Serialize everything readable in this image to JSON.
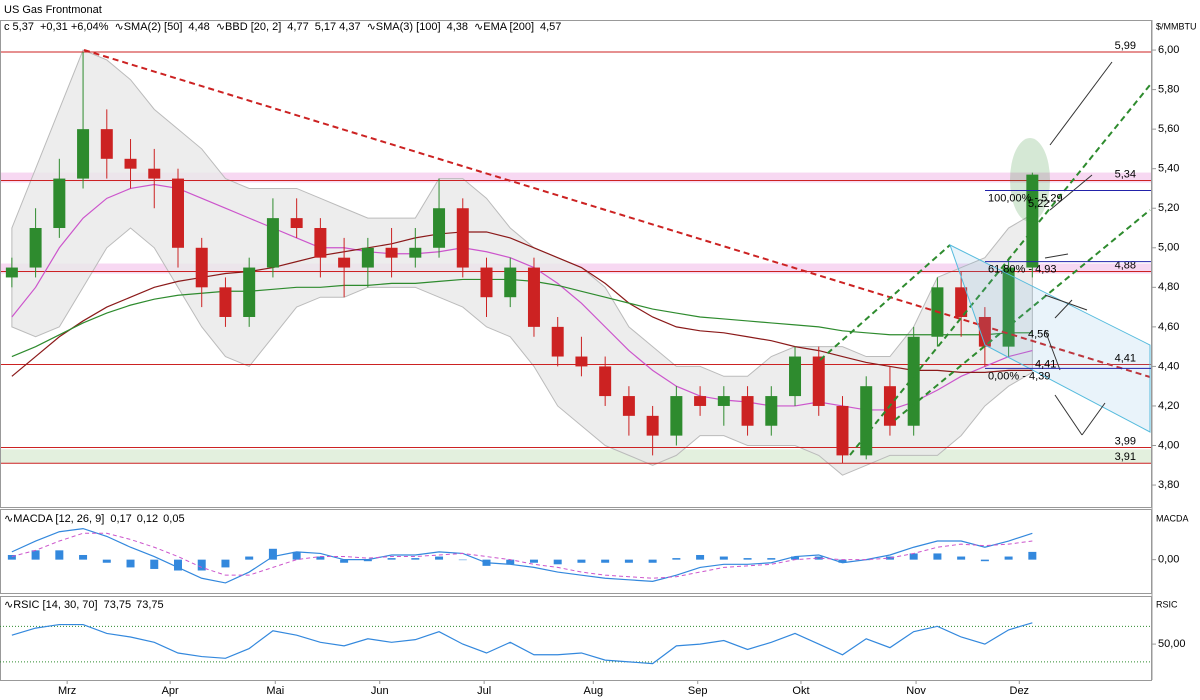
{
  "chart_data": {
    "type": "candlestick",
    "title": "US Gas Frontmonat",
    "unit_label": "$/MMBTU",
    "legend": [
      {
        "text": "c 5,37",
        "color": "#000000"
      },
      {
        "text": "+0,31 +6,04%",
        "color": "#008000"
      },
      {
        "text": "∿SMA(2) [50]",
        "color": "#000000"
      },
      {
        "text": "4,48",
        "color": "#cc55cc"
      },
      {
        "text": "∿BBD [20, 2]",
        "color": "#000000"
      },
      {
        "text": "4,77",
        "color": "#3388dd"
      },
      {
        "text": "5,17 4,37",
        "color": "#aaaaaa"
      },
      {
        "text": "∿SMA(3) [100]",
        "color": "#000000"
      },
      {
        "text": "4,38",
        "color": "#8b1a1a"
      },
      {
        "text": "∿EMA [200]",
        "color": "#000000"
      },
      {
        "text": "4,57",
        "color": "#2e8b2e"
      }
    ],
    "xlim": [
      0,
      48.5
    ],
    "xticks": [
      {
        "value": 2.83,
        "label": "Mrz"
      },
      {
        "value": 7.17,
        "label": "Apr"
      },
      {
        "value": 11.6,
        "label": "Mai"
      },
      {
        "value": 16.0,
        "label": "Jun"
      },
      {
        "value": 20.4,
        "label": "Jul"
      },
      {
        "value": 25.0,
        "label": "Aug"
      },
      {
        "value": 29.4,
        "label": "Sep"
      },
      {
        "value": 33.75,
        "label": "Okt"
      },
      {
        "value": 38.6,
        "label": "Nov"
      },
      {
        "value": 42.95,
        "label": "Dez"
      }
    ],
    "ylim": [
      3.689,
      6.152
    ],
    "yticks": [
      {
        "value": 3.8,
        "label": "3,80"
      },
      {
        "value": 4.0,
        "label": "4,00"
      },
      {
        "value": 4.2,
        "label": "4,20"
      },
      {
        "value": 4.4,
        "label": "4,40"
      },
      {
        "value": 4.6,
        "label": "4,60"
      },
      {
        "value": 4.8,
        "label": "4,80"
      },
      {
        "value": 5.0,
        "label": "5,00"
      },
      {
        "value": 5.2,
        "label": "5,20"
      },
      {
        "value": 5.4,
        "label": "5,40"
      },
      {
        "value": 5.6,
        "label": "5,60"
      },
      {
        "value": 5.8,
        "label": "5,80"
      },
      {
        "value": 6.0,
        "label": "6,00"
      }
    ],
    "up_color": "#2e8b2e",
    "down_color": "#cc2222",
    "open": [
      4.85,
      4.9,
      5.1,
      5.35,
      5.6,
      5.45,
      5.4,
      5.35,
      5.0,
      4.8,
      4.65,
      4.9,
      5.15,
      5.1,
      4.95,
      4.9,
      5.0,
      4.95,
      5.0,
      5.2,
      4.9,
      4.75,
      4.9,
      4.6,
      4.45,
      4.4,
      4.25,
      4.15,
      4.05,
      4.25,
      4.2,
      4.25,
      4.1,
      4.25,
      4.45,
      4.2,
      3.95,
      4.3,
      4.1,
      4.55,
      4.8,
      4.65,
      4.5,
      4.9
    ],
    "high": [
      4.95,
      5.2,
      5.45,
      5.99,
      5.7,
      5.55,
      5.5,
      5.4,
      5.05,
      4.85,
      4.95,
      5.25,
      5.25,
      5.15,
      5.05,
      5.05,
      5.1,
      5.1,
      5.35,
      5.25,
      4.95,
      4.95,
      4.95,
      4.65,
      4.55,
      4.45,
      4.3,
      4.2,
      4.3,
      4.3,
      4.3,
      4.3,
      4.3,
      4.5,
      4.5,
      4.25,
      4.35,
      4.4,
      4.6,
      4.85,
      4.88,
      4.7,
      4.95,
      5.38
    ],
    "low": [
      4.8,
      4.85,
      5.05,
      5.3,
      5.35,
      5.3,
      5.2,
      4.9,
      4.7,
      4.6,
      4.6,
      4.85,
      5.05,
      4.85,
      4.75,
      4.8,
      4.85,
      4.9,
      4.95,
      4.85,
      4.65,
      4.7,
      4.55,
      4.4,
      4.35,
      4.2,
      4.05,
      3.95,
      4.0,
      4.15,
      4.1,
      4.05,
      4.05,
      4.2,
      4.15,
      3.91,
      3.93,
      4.05,
      4.05,
      4.5,
      4.55,
      4.4,
      4.45,
      4.85
    ],
    "close": [
      4.9,
      5.1,
      5.35,
      5.6,
      5.45,
      5.4,
      5.35,
      5.0,
      4.8,
      4.65,
      4.9,
      5.15,
      5.1,
      4.95,
      4.9,
      5.0,
      4.95,
      5.0,
      5.2,
      4.9,
      4.75,
      4.9,
      4.6,
      4.45,
      4.4,
      4.25,
      4.15,
      4.05,
      4.25,
      4.2,
      4.25,
      4.1,
      4.25,
      4.45,
      4.2,
      3.95,
      4.3,
      4.1,
      4.55,
      4.8,
      4.65,
      4.5,
      4.9,
      5.37
    ],
    "bands": {
      "color": "#e8e8e8",
      "upper": [
        5.1,
        5.4,
        5.7,
        6.0,
        5.95,
        5.85,
        5.7,
        5.6,
        5.5,
        5.35,
        5.3,
        5.3,
        5.3,
        5.25,
        5.2,
        5.15,
        5.15,
        5.15,
        5.35,
        5.35,
        5.25,
        5.1,
        5.0,
        4.95,
        4.9,
        4.8,
        4.6,
        4.5,
        4.4,
        4.4,
        4.35,
        4.35,
        4.45,
        4.5,
        4.5,
        4.5,
        4.45,
        4.45,
        4.6,
        4.85,
        4.9,
        4.95,
        5.1,
        5.17
      ],
      "lower": [
        4.6,
        4.55,
        4.6,
        4.8,
        5.0,
        5.1,
        5.0,
        4.8,
        4.6,
        4.45,
        4.4,
        4.55,
        4.7,
        4.75,
        4.75,
        4.8,
        4.8,
        4.8,
        4.75,
        4.7,
        4.6,
        4.55,
        4.4,
        4.2,
        4.1,
        4.0,
        3.95,
        3.9,
        3.95,
        4.05,
        4.05,
        4.0,
        4.0,
        4.0,
        3.95,
        3.85,
        3.9,
        3.95,
        3.95,
        3.95,
        4.05,
        4.2,
        4.3,
        4.37
      ]
    },
    "series": [
      {
        "name": "SMA 50",
        "color": "#cc55cc",
        "values": [
          4.65,
          4.8,
          5.0,
          5.15,
          5.25,
          5.3,
          5.32,
          5.3,
          5.25,
          5.2,
          5.15,
          5.1,
          5.05,
          5.0,
          5.0,
          4.98,
          4.97,
          4.97,
          4.98,
          5.0,
          4.98,
          4.95,
          4.9,
          4.82,
          4.72,
          4.6,
          4.48,
          4.38,
          4.3,
          4.25,
          4.23,
          4.22,
          4.2,
          4.2,
          4.22,
          4.2,
          4.18,
          4.18,
          4.22,
          4.28,
          4.35,
          4.4,
          4.45,
          4.48
        ]
      },
      {
        "name": "SMA 100",
        "color": "#8b1a1a",
        "values": [
          4.35,
          4.45,
          4.55,
          4.63,
          4.7,
          4.75,
          4.8,
          4.83,
          4.85,
          4.87,
          4.88,
          4.9,
          4.93,
          4.96,
          4.98,
          5.0,
          5.02,
          5.05,
          5.07,
          5.08,
          5.08,
          5.05,
          5.0,
          4.95,
          4.9,
          4.82,
          4.72,
          4.65,
          4.6,
          4.58,
          4.57,
          4.55,
          4.53,
          4.5,
          4.48,
          4.45,
          4.42,
          4.4,
          4.38,
          4.38,
          4.37,
          4.37,
          4.38,
          4.38
        ]
      },
      {
        "name": "EMA 200",
        "color": "#2e8b2e",
        "values": [
          4.45,
          4.5,
          4.56,
          4.62,
          4.67,
          4.71,
          4.74,
          4.76,
          4.77,
          4.78,
          4.78,
          4.79,
          4.8,
          4.8,
          4.81,
          4.81,
          4.82,
          4.82,
          4.83,
          4.84,
          4.84,
          4.84,
          4.83,
          4.81,
          4.78,
          4.75,
          4.72,
          4.69,
          4.67,
          4.65,
          4.64,
          4.63,
          4.62,
          4.61,
          4.6,
          4.58,
          4.57,
          4.56,
          4.56,
          4.56,
          4.56,
          4.56,
          4.57,
          4.57
        ]
      }
    ],
    "levels": [
      {
        "value": 5.99,
        "label": "5,99",
        "color": "#cc2222"
      },
      {
        "value": 5.34,
        "label": "5,34",
        "color": "#cc2222"
      },
      {
        "value": 4.88,
        "label": "4,88",
        "color": "#cc2222"
      },
      {
        "value": 4.41,
        "label": "4,41",
        "color": "#cc2222"
      },
      {
        "value": 3.99,
        "label": "3,99",
        "color": "#cc2222"
      },
      {
        "value": 3.91,
        "label": "3,91",
        "color": "#cc2222"
      }
    ],
    "fib_levels": [
      {
        "value": 5.29,
        "label": "100,00% - 5,29"
      },
      {
        "value": 4.93,
        "label": "61,80% - 4,93"
      },
      {
        "value": 4.39,
        "label": "0,00% - 4,39"
      }
    ],
    "annotations": [
      {
        "value": 5.22,
        "label": "5,22",
        "color": "#2e8b2e"
      },
      {
        "value": 4.56,
        "label": "4,56",
        "color": "#2e8b2e"
      },
      {
        "value": 4.41,
        "label": "4,41",
        "color": "#cc2222"
      }
    ],
    "macd": {
      "title": "∿MACDA [12, 26, 9]",
      "side_label": "MACDA",
      "legend_values": [
        {
          "text": "0,17",
          "color": "#3388dd"
        },
        {
          "text": "0,12",
          "color": "#cc55cc"
        },
        {
          "text": "0,05",
          "color": "#3388dd"
        }
      ],
      "ylim": [
        -0.215,
        0.32
      ],
      "yticks": [
        {
          "value": 0,
          "label": "0,00"
        }
      ],
      "macd": [
        0.05,
        0.12,
        0.18,
        0.2,
        0.15,
        0.08,
        0.02,
        -0.05,
        -0.12,
        -0.15,
        -0.08,
        0.02,
        0.05,
        0.04,
        0.0,
        0.0,
        0.03,
        0.03,
        0.05,
        0.04,
        -0.02,
        -0.03,
        -0.05,
        -0.08,
        -0.1,
        -0.12,
        -0.13,
        -0.14,
        -0.1,
        -0.05,
        -0.03,
        -0.03,
        -0.02,
        0.02,
        0.03,
        -0.02,
        0.0,
        0.03,
        0.08,
        0.12,
        0.12,
        0.08,
        0.12,
        0.17
      ],
      "signal": [
        0.02,
        0.06,
        0.12,
        0.17,
        0.17,
        0.13,
        0.08,
        0.02,
        -0.05,
        -0.1,
        -0.1,
        -0.05,
        0.0,
        0.02,
        0.02,
        0.01,
        0.02,
        0.02,
        0.03,
        0.04,
        0.02,
        0.0,
        -0.03,
        -0.05,
        -0.08,
        -0.1,
        -0.11,
        -0.12,
        -0.11,
        -0.08,
        -0.05,
        -0.04,
        -0.03,
        0.0,
        0.01,
        0.0,
        0.0,
        0.01,
        0.04,
        0.08,
        0.1,
        0.09,
        0.1,
        0.12
      ],
      "histogram": [
        0.03,
        0.06,
        0.06,
        0.03,
        -0.02,
        -0.05,
        -0.06,
        -0.07,
        -0.07,
        -0.05,
        0.02,
        0.07,
        0.05,
        0.02,
        -0.02,
        -0.01,
        0.01,
        0.01,
        0.02,
        0.0,
        -0.04,
        -0.03,
        -0.02,
        -0.03,
        -0.02,
        -0.02,
        -0.02,
        -0.02,
        0.01,
        0.03,
        0.02,
        0.01,
        0.01,
        0.02,
        0.02,
        -0.02,
        0.0,
        0.02,
        0.04,
        0.04,
        0.02,
        -0.01,
        0.02,
        0.05
      ]
    },
    "rsi": {
      "title": "∿RSIC [14, 30, 70]",
      "side_label": "RSIC",
      "legend_values": [
        {
          "text": "73,75",
          "color": "#3388dd"
        },
        {
          "text": "73,75",
          "color": "#2e8b2e"
        }
      ],
      "ylim": [
        9.6,
        103
      ],
      "yticks": [
        {
          "value": 50,
          "label": "50,00"
        }
      ],
      "levels": [
        30,
        70
      ],
      "values": [
        60,
        68,
        72,
        72,
        62,
        58,
        52,
        40,
        36,
        34,
        45,
        65,
        60,
        52,
        48,
        56,
        52,
        55,
        64,
        50,
        40,
        52,
        38,
        38,
        40,
        32,
        30,
        28,
        48,
        50,
        54,
        44,
        52,
        62,
        50,
        38,
        56,
        46,
        64,
        70,
        58,
        50,
        66,
        74
      ]
    }
  }
}
